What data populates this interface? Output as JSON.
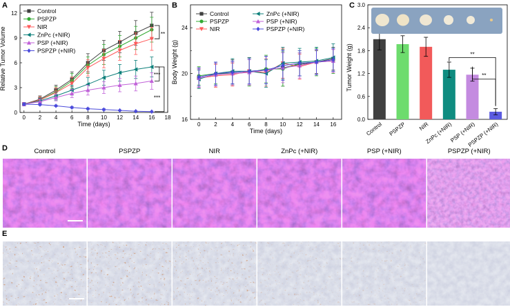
{
  "panels": {
    "a": "A",
    "b": "B",
    "c": "C",
    "d": "D",
    "e": "E"
  },
  "colors": {
    "Control": "#404040",
    "PSPZP": "#33aa33",
    "NIR": "#ff5a5a",
    "ZnPc (+NIR)": "#0c7f7a",
    "PSP (+NIR)": "#c060d8",
    "PSPZP (+NIR)": "#4a4adb",
    "bar_Control": "#404040",
    "bar_PSPZP": "#6ddc6d",
    "bar_NIR": "#f25a5a",
    "bar_ZnPc (+NIR)": "#0f8c80",
    "bar_PSP (+NIR)": "#c48be0",
    "bar_PSPZP (+NIR)": "#5a5ae0"
  },
  "chart_data": [
    {
      "id": "A",
      "type": "line",
      "title": "",
      "xlabel": "Time (days)",
      "ylabel": "Relative Tumor Volume",
      "xlim": [
        -0.5,
        18
      ],
      "ylim": [
        0,
        13
      ],
      "xticks": [
        0,
        2,
        4,
        6,
        8,
        10,
        12,
        14,
        16,
        18
      ],
      "yticks": [
        0,
        3,
        6,
        9,
        12
      ],
      "x": [
        0,
        2,
        4,
        6,
        8,
        10,
        12,
        14,
        16
      ],
      "series": [
        {
          "name": "Control",
          "marker": "square",
          "values": [
            1.0,
            1.6,
            2.7,
            4.0,
            6.0,
            7.5,
            8.5,
            9.6,
            10.5
          ],
          "errors": [
            0.2,
            0.4,
            0.6,
            0.9,
            1.1,
            1.2,
            1.3,
            1.5,
            1.6
          ]
        },
        {
          "name": "PSPZP",
          "marker": "circle",
          "values": [
            1.0,
            1.5,
            2.5,
            3.8,
            5.7,
            7.0,
            8.0,
            9.0,
            10.0
          ],
          "errors": [
            0.2,
            0.4,
            0.6,
            0.9,
            1.0,
            1.2,
            1.3,
            1.4,
            1.5
          ]
        },
        {
          "name": "NIR",
          "marker": "triangle-down",
          "values": [
            1.0,
            1.5,
            2.4,
            3.5,
            5.4,
            6.5,
            7.5,
            8.3,
            8.9
          ],
          "errors": [
            0.2,
            0.4,
            0.6,
            0.8,
            1.0,
            1.1,
            1.2,
            1.3,
            1.4
          ]
        },
        {
          "name": "ZnPc (+NIR)",
          "marker": "triangle-left",
          "values": [
            1.0,
            1.4,
            2.0,
            2.7,
            3.4,
            4.2,
            4.8,
            5.2,
            5.5
          ],
          "errors": [
            0.2,
            0.3,
            0.5,
            0.6,
            0.8,
            0.9,
            1.0,
            1.1,
            1.2
          ]
        },
        {
          "name": "PSP (+NIR)",
          "marker": "triangle-up",
          "values": [
            1.0,
            1.3,
            1.8,
            2.3,
            2.7,
            3.0,
            3.3,
            3.5,
            3.8
          ],
          "errors": [
            0.2,
            0.3,
            0.4,
            0.5,
            0.6,
            0.7,
            0.8,
            0.9,
            1.0
          ]
        },
        {
          "name": "PSPZP (+NIR)",
          "marker": "diamond",
          "values": [
            1.0,
            0.95,
            0.8,
            0.6,
            0.45,
            0.35,
            0.25,
            0.15,
            0.1
          ],
          "errors": [
            0.1,
            0.1,
            0.1,
            0.1,
            0.1,
            0.1,
            0.05,
            0.05,
            0.05
          ]
        }
      ],
      "significance": [
        "**",
        "***",
        "***"
      ]
    },
    {
      "id": "B",
      "type": "line",
      "title": "",
      "xlabel": "Time (days)",
      "ylabel": "Body Weight (g)",
      "xlim": [
        -1,
        17
      ],
      "ylim": [
        16,
        26
      ],
      "xticks": [
        0,
        2,
        4,
        6,
        8,
        10,
        12,
        14,
        16
      ],
      "yticks": [
        16,
        20,
        24
      ],
      "minor_yticks": [
        18,
        22
      ],
      "x": [
        0,
        2,
        4,
        6,
        8,
        10,
        12,
        14,
        16
      ],
      "series": [
        {
          "name": "Control",
          "marker": "square",
          "values": [
            19.6,
            19.9,
            20.1,
            20.2,
            20.3,
            20.5,
            20.8,
            21.0,
            21.3
          ],
          "errors": [
            0.9,
            1.0,
            1.1,
            1.2,
            1.2,
            1.6,
            1.0,
            1.0,
            1.0
          ]
        },
        {
          "name": "PSPZP",
          "marker": "circle",
          "values": [
            19.8,
            20.0,
            20.0,
            20.1,
            20.4,
            20.4,
            20.9,
            21.0,
            21.1
          ],
          "errors": [
            0.8,
            0.9,
            1.0,
            1.2,
            1.2,
            1.5,
            1.1,
            1.2,
            1.1
          ]
        },
        {
          "name": "NIR",
          "marker": "triangle-down",
          "values": [
            19.6,
            19.8,
            19.9,
            20.2,
            20.1,
            20.9,
            20.6,
            21.0,
            21.1
          ],
          "errors": [
            0.8,
            1.0,
            1.0,
            1.2,
            1.2,
            1.3,
            1.1,
            1.1,
            1.0
          ]
        },
        {
          "name": "ZnPc (+NIR)",
          "marker": "triangle-left",
          "values": [
            19.5,
            20.0,
            20.2,
            20.2,
            20.0,
            20.9,
            21.0,
            21.1,
            21.4
          ],
          "errors": [
            0.8,
            1.0,
            1.1,
            1.2,
            1.2,
            1.4,
            1.2,
            1.2,
            1.2
          ]
        },
        {
          "name": "PSP (+NIR)",
          "marker": "triangle-up",
          "values": [
            19.6,
            19.9,
            20.0,
            20.1,
            20.3,
            20.5,
            20.7,
            21.0,
            21.1
          ],
          "errors": [
            0.8,
            1.0,
            1.0,
            1.1,
            1.2,
            1.3,
            1.1,
            1.1,
            1.0
          ]
        },
        {
          "name": "PSPZP (+NIR)",
          "marker": "diamond",
          "values": [
            19.7,
            20.0,
            20.1,
            20.2,
            20.3,
            20.7,
            20.9,
            21.0,
            21.2
          ],
          "errors": [
            0.8,
            1.0,
            1.0,
            1.1,
            1.2,
            1.3,
            1.1,
            1.1,
            1.0
          ]
        }
      ]
    },
    {
      "id": "C",
      "type": "bar",
      "title": "",
      "xlabel": "",
      "ylabel": "Tumor Weight (g)",
      "ylim": [
        0,
        3.0
      ],
      "yticks": [
        0.0,
        0.6,
        1.2,
        1.8,
        2.4,
        3.0
      ],
      "categories": [
        "Control",
        "PSPZP",
        "NIR",
        "ZnPc (+NIR)",
        "PSP (+NIR)",
        "PSPZP (+NIR)"
      ],
      "values": [
        2.1,
        1.97,
        1.9,
        1.3,
        1.17,
        0.2
      ],
      "errors": [
        0.28,
        0.22,
        0.25,
        0.2,
        0.17,
        0.08
      ],
      "significance": [
        "**",
        "**"
      ]
    }
  ],
  "panel_d": {
    "labels": [
      "Control",
      "PSPZP",
      "NIR",
      "ZnPc (+NIR)",
      "PSP (+NIR)",
      "PSPZP (+NIR)"
    ]
  }
}
